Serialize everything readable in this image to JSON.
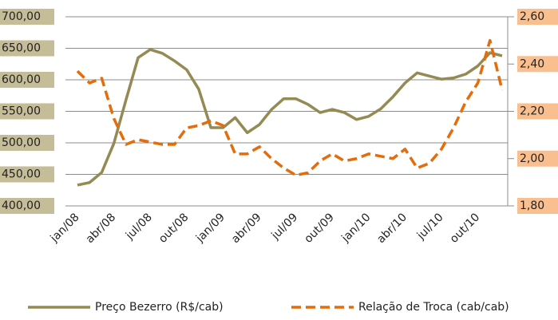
{
  "chart_data": {
    "type": "line",
    "categories": [
      "jan/08",
      null,
      null,
      "abr/08",
      null,
      null,
      "jul/08",
      null,
      null,
      "out/08",
      null,
      null,
      "jan/09",
      null,
      null,
      "abr/09",
      null,
      null,
      "jul/09",
      null,
      null,
      "out/09",
      null,
      null,
      "jan/10",
      null,
      null,
      "abr/10",
      null,
      null,
      "jul/10",
      null,
      null,
      "out/10",
      null,
      null
    ],
    "series": [
      {
        "name": "Preço Bezerro (R$/cab)",
        "color": "#948a54",
        "values": [
          433,
          437,
          453,
          499,
          568,
          635,
          648,
          642,
          630,
          616,
          585,
          524,
          524,
          540,
          516,
          529,
          553,
          570,
          570,
          561,
          548,
          553,
          548,
          537,
          542,
          554,
          573,
          595,
          611,
          606,
          601,
          603,
          609,
          622,
          643,
          638
        ]
      },
      {
        "name": "Relação de Troca (cab/cab)",
        "color": "#e46c0a",
        "axis": "y2",
        "dashed": true,
        "values": [
          2.37,
          2.32,
          2.34,
          2.17,
          2.06,
          2.08,
          2.07,
          2.06,
          2.06,
          2.13,
          2.14,
          2.16,
          2.14,
          2.02,
          2.02,
          2.05,
          2.0,
          1.96,
          1.93,
          1.94,
          1.99,
          2.02,
          1.99,
          2.0,
          2.02,
          2.01,
          2.0,
          2.04,
          1.96,
          1.98,
          2.04,
          2.13,
          2.24,
          2.32,
          2.5,
          2.29
        ]
      }
    ],
    "ylim": [
      400,
      700
    ],
    "yticks": [
      {
        "value": 400,
        "label": "400,00"
      },
      {
        "value": 450,
        "label": "450,00"
      },
      {
        "value": 500,
        "label": "500,00"
      },
      {
        "value": 550,
        "label": "550,00"
      },
      {
        "value": 600,
        "label": "600,00"
      },
      {
        "value": 650,
        "label": "650,00"
      },
      {
        "value": 700,
        "label": "700,00"
      }
    ],
    "y2lim": [
      1.8,
      2.6
    ],
    "y2ticks": [
      {
        "value": 1.8,
        "label": "1,80"
      },
      {
        "value": 2.0,
        "label": "2,00"
      },
      {
        "value": 2.2,
        "label": "2,20"
      },
      {
        "value": 2.4,
        "label": "2,40"
      },
      {
        "value": 2.6,
        "label": "2,60"
      }
    ],
    "grid": true,
    "legend": "bottom"
  }
}
